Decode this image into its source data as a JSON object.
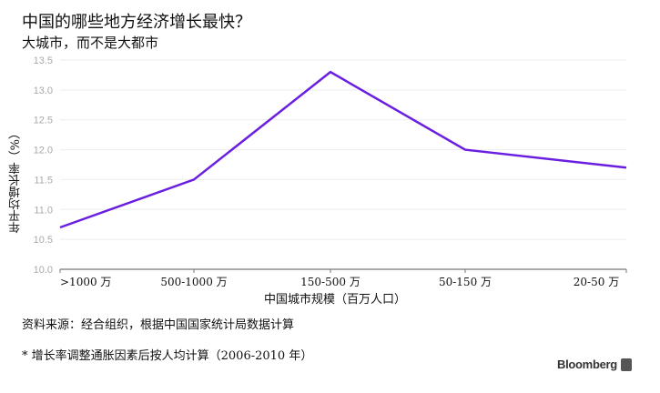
{
  "chart_data": {
    "type": "line",
    "title": "中国的哪些地方经济增长最快？",
    "subtitle": "大城市，而不是大都市",
    "xlabel": "中国城市规模（百万人口）",
    "ylabel": "年平均增长率（%）",
    "categories": [
      ">1000 万",
      "500-1000 万",
      "150-500 万",
      "50-150 万",
      "20-50 万"
    ],
    "values": [
      10.7,
      11.5,
      13.3,
      12.0,
      11.7
    ],
    "ylim": [
      10.0,
      13.5
    ],
    "yticks": [
      "10.0",
      "10.5",
      "11.0",
      "11.5",
      "12.0",
      "12.5",
      "13.0",
      "13.5"
    ],
    "grid": true,
    "line_color": "#6a1fe0"
  },
  "footer": {
    "source": "资料来源：经合组织，根据中国国家统计局数据计算",
    "note": "* 增长率调整通胀因素后按人均计算（2006-2010 年）",
    "brand": "Bloomberg"
  }
}
